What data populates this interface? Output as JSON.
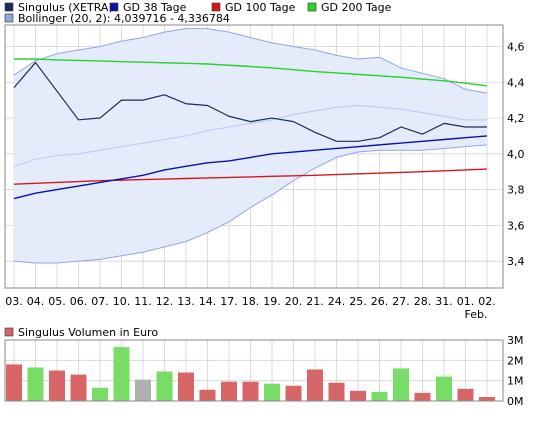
{
  "legend": {
    "top": [
      {
        "label": "Singulus (XETRA)",
        "color": "#1b2b5c"
      },
      {
        "label": "GD 38 Tage",
        "color": "#0a13a8"
      },
      {
        "label": "GD 100 Tage",
        "color": "#d8161a"
      },
      {
        "label": "GD 200 Tage",
        "color": "#2ad22a"
      }
    ],
    "bollinger": {
      "label": "Bollinger (20, 2): 4,039716 - 4,336784",
      "color": "#8fa6e0"
    },
    "volume": {
      "label": "Singulus Volumen in Euro",
      "color": "#d96666"
    }
  },
  "chart_data": [
    {
      "type": "line",
      "x": [
        "03.",
        "04.",
        "05.",
        "06.",
        "07.",
        "10.",
        "11.",
        "12.",
        "13.",
        "14.",
        "17.",
        "18.",
        "19.",
        "20.",
        "21.",
        "24.",
        "25.",
        "26.",
        "27.",
        "28.",
        "31.",
        "01.",
        "02."
      ],
      "x_sublabels": {
        "01.": "Feb."
      },
      "ylim": [
        3.25,
        4.72
      ],
      "yticks": [
        "3,4",
        "3,6",
        "3,8",
        "4,0",
        "4,2",
        "4,4",
        "4,6"
      ],
      "yticks_values": [
        3.4,
        3.6,
        3.8,
        4.0,
        4.2,
        4.4,
        4.6
      ],
      "grid": true,
      "series": [
        {
          "name": "Singulus (XETRA)",
          "color": "#1b2b5c",
          "values": [
            4.37,
            4.51,
            4.35,
            4.19,
            4.2,
            4.3,
            4.3,
            4.33,
            4.28,
            4.27,
            4.21,
            4.18,
            4.2,
            4.18,
            4.12,
            4.07,
            4.07,
            4.09,
            4.15,
            4.11,
            4.17,
            4.15,
            4.15
          ]
        },
        {
          "name": "GD 38 Tage",
          "color": "#0a13a8",
          "values": [
            3.75,
            3.78,
            3.8,
            3.82,
            3.84,
            3.86,
            3.88,
            3.91,
            3.93,
            3.95,
            3.96,
            3.98,
            4.0,
            4.01,
            4.02,
            4.03,
            4.04,
            4.05,
            4.06,
            4.07,
            4.08,
            4.09,
            4.1
          ]
        },
        {
          "name": "GD 100 Tage",
          "color": "#d8161a",
          "values": [
            3.83,
            3.835,
            3.84,
            3.845,
            3.85,
            3.853,
            3.856,
            3.859,
            3.862,
            3.865,
            3.868,
            3.871,
            3.874,
            3.877,
            3.88,
            3.884,
            3.888,
            3.892,
            3.896,
            3.9,
            3.905,
            3.91,
            3.915
          ]
        },
        {
          "name": "GD 200 Tage",
          "color": "#2ad22a",
          "values": [
            4.53,
            4.53,
            4.525,
            4.522,
            4.519,
            4.515,
            4.512,
            4.509,
            4.506,
            4.502,
            4.495,
            4.488,
            4.48,
            4.47,
            4.46,
            4.452,
            4.444,
            4.436,
            4.428,
            4.418,
            4.408,
            4.395,
            4.38
          ]
        }
      ],
      "bollinger": {
        "name": "Bollinger (20, 2)",
        "color": "#8fa6e0",
        "fill": "#e4ecfb",
        "upper": [
          4.44,
          4.52,
          4.56,
          4.58,
          4.6,
          4.63,
          4.65,
          4.68,
          4.7,
          4.7,
          4.68,
          4.65,
          4.62,
          4.6,
          4.58,
          4.55,
          4.53,
          4.54,
          4.48,
          4.45,
          4.42,
          4.36,
          4.34
        ],
        "middle": [
          3.93,
          3.97,
          3.99,
          4.0,
          4.02,
          4.04,
          4.06,
          4.08,
          4.1,
          4.13,
          4.15,
          4.17,
          4.19,
          4.22,
          4.24,
          4.26,
          4.27,
          4.26,
          4.25,
          4.23,
          4.21,
          4.19,
          4.19
        ],
        "lower": [
          3.4,
          3.39,
          3.39,
          3.4,
          3.41,
          3.43,
          3.45,
          3.48,
          3.51,
          3.56,
          3.62,
          3.7,
          3.77,
          3.85,
          3.92,
          3.98,
          4.01,
          4.02,
          4.02,
          4.02,
          4.03,
          4.04,
          4.05
        ]
      }
    },
    {
      "type": "bar",
      "title": "Singulus Volumen in Euro",
      "categories": [
        "03.",
        "04.",
        "05.",
        "06.",
        "07.",
        "10.",
        "11.",
        "12.",
        "13.",
        "14.",
        "17.",
        "18.",
        "19.",
        "20.",
        "21.",
        "24.",
        "25.",
        "26.",
        "27.",
        "28.",
        "31.",
        "01.",
        "02."
      ],
      "values": [
        1.8,
        1.65,
        1.5,
        1.3,
        0.65,
        2.65,
        1.05,
        1.45,
        1.4,
        0.55,
        0.95,
        0.95,
        0.85,
        0.75,
        1.55,
        0.9,
        0.5,
        0.45,
        1.6,
        0.4,
        1.2,
        0.6,
        0.2
      ],
      "bar_colors": [
        "#d96666",
        "#77dd66",
        "#d96666",
        "#d96666",
        "#77dd66",
        "#77dd66",
        "#b0b0b0",
        "#77dd66",
        "#d96666",
        "#d96666",
        "#d96666",
        "#d96666",
        "#77dd66",
        "#d96666",
        "#d96666",
        "#d96666",
        "#d96666",
        "#77dd66",
        "#77dd66",
        "#d96666",
        "#77dd66",
        "#d96666",
        "#d96666"
      ],
      "unit": "M",
      "ylim": [
        0,
        3
      ],
      "yticks": [
        "0M",
        "1M",
        "2M",
        "3M"
      ],
      "yticks_values": [
        0,
        1,
        2,
        3
      ],
      "grid": true
    }
  ]
}
